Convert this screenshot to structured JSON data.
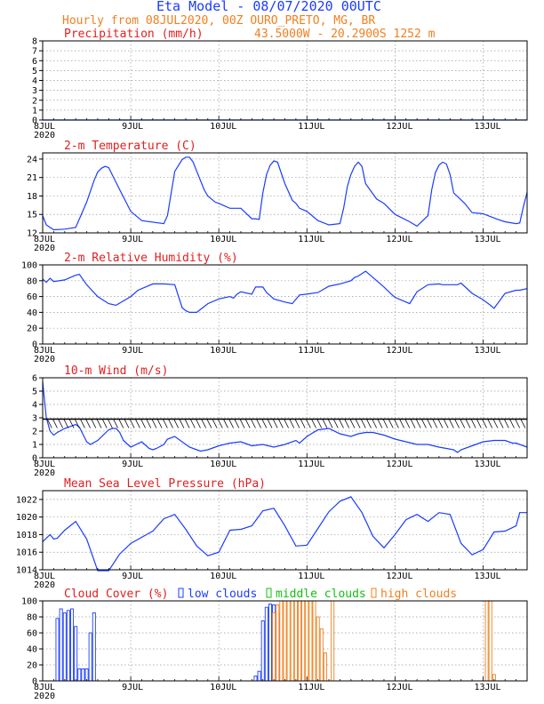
{
  "header": {
    "title": "Eta Model - 08/07/2020 00UTC",
    "line2": "Hourly from 08JUL2020, 00Z  OURO_PRETO, MG, BR",
    "coords": "43.5000W - 20.2900S   1252  m"
  },
  "x_axis": {
    "tick_labels": [
      "8JUL",
      "9JUL",
      "10JUL",
      "11JUL",
      "12JUL",
      "13JUL"
    ],
    "year_label": "2020"
  },
  "colors": {
    "series": "#1a3cff",
    "title": "#e02020",
    "low": "#1a3cff",
    "middle": "#10c010",
    "high": "#f08020",
    "wind_barb": "#000000"
  },
  "chart_data": [
    {
      "type": "line",
      "title": "Precipitation (mm/h)",
      "ylim": [
        0,
        8
      ],
      "yticks": [
        0,
        1,
        2,
        3,
        4,
        5,
        6,
        7,
        8
      ],
      "grid": true,
      "x_hours": [
        0,
        132
      ],
      "series": [
        {
          "values": [
            0,
            0
          ]
        }
      ]
    },
    {
      "type": "line",
      "title": "2-m Temperature (C)",
      "ylim": [
        12,
        25
      ],
      "yticks": [
        12,
        15,
        18,
        21,
        24
      ],
      "grid": true,
      "x_hours": [
        0,
        1,
        3,
        6,
        9,
        12,
        14,
        15,
        16,
        17,
        18,
        21,
        24,
        27,
        33,
        34,
        36,
        38,
        39,
        40,
        41,
        42,
        44,
        45,
        47,
        48,
        51,
        54,
        57,
        58,
        59,
        60,
        61,
        62,
        63,
        64,
        66,
        68,
        69,
        70,
        72,
        75,
        78,
        81,
        82,
        83,
        84,
        85,
        86,
        87,
        88,
        91,
        93,
        96,
        100,
        102,
        105,
        106,
        107,
        108,
        109,
        110,
        111,
        112,
        115,
        117,
        120,
        124,
        126,
        129,
        130,
        131,
        132
      ],
      "series": [
        {
          "values": [
            14.8,
            13.3,
            12.5,
            12.6,
            12.9,
            17,
            20.5,
            21.9,
            22.5,
            22.8,
            22.6,
            19,
            15.5,
            14,
            13.5,
            14.8,
            22,
            23.9,
            24.3,
            24.3,
            23.5,
            22,
            19,
            18,
            17,
            16.8,
            16,
            16,
            14.3,
            14.3,
            14.2,
            18.5,
            21.5,
            23,
            23.7,
            23.5,
            20,
            17.3,
            16.8,
            16,
            15.5,
            14,
            13.3,
            13.5,
            16,
            19.5,
            21.5,
            22.8,
            23.5,
            22.8,
            20,
            17.5,
            16.8,
            15,
            13.8,
            13.1,
            14.8,
            19,
            21.8,
            23,
            23.5,
            23.2,
            21.5,
            18.5,
            16.8,
            15.3,
            15.1,
            14.2,
            13.8,
            13.5,
            13.6,
            16.3,
            18.6
          ]
        }
      ]
    },
    {
      "type": "line",
      "title": "2-m Relative Humidity (%)",
      "ylim": [
        0,
        100
      ],
      "yticks": [
        0,
        20,
        40,
        60,
        80,
        100
      ],
      "grid": true,
      "x_hours": [
        0,
        1,
        2,
        3,
        6,
        9,
        10,
        12,
        15,
        18,
        20,
        24,
        26,
        28,
        30,
        33,
        36,
        38,
        39,
        40,
        42,
        45,
        48,
        51,
        52,
        53,
        54,
        57,
        58,
        60,
        61,
        63,
        66,
        68,
        70,
        72,
        75,
        78,
        81,
        84,
        85,
        86,
        88,
        90,
        93,
        95,
        96,
        100,
        102,
        105,
        108,
        109,
        110,
        113,
        114,
        117,
        120,
        122,
        123,
        126,
        129,
        130,
        132
      ],
      "series": [
        {
          "values": [
            82,
            78,
            83,
            79,
            81,
            87,
            88,
            75,
            60,
            51,
            49,
            60,
            68,
            72,
            76,
            76,
            75,
            46,
            42,
            40,
            40,
            51,
            57,
            60,
            58,
            63,
            66,
            63,
            72,
            72,
            65,
            57,
            53,
            51,
            62,
            63,
            65,
            73,
            76,
            80,
            84,
            86,
            92,
            84,
            72,
            63,
            59,
            51,
            66,
            75,
            76,
            75,
            75,
            75,
            77,
            64,
            56,
            49,
            45,
            64,
            68,
            68,
            70
          ]
        }
      ]
    },
    {
      "type": "line",
      "title": "10-m Wind (m/s)",
      "ylim": [
        0,
        6
      ],
      "yticks": [
        0,
        1,
        2,
        3,
        4,
        5,
        6
      ],
      "grid": true,
      "x_hours": [
        0,
        1,
        2,
        3,
        4,
        6,
        9,
        10,
        12,
        13,
        15,
        18,
        19,
        20,
        21,
        22,
        24,
        27,
        29,
        30,
        31,
        33,
        34,
        36,
        39,
        40,
        42,
        43,
        45,
        48,
        51,
        54,
        57,
        60,
        63,
        66,
        69,
        70,
        72,
        75,
        78,
        81,
        84,
        86,
        88,
        90,
        93,
        96,
        99,
        102,
        105,
        108,
        110,
        112,
        113,
        114,
        117,
        120,
        123,
        126,
        128,
        129,
        132
      ],
      "series": [
        {
          "values": [
            5.7,
            3,
            2,
            1.7,
            1.9,
            2.2,
            2.5,
            2.3,
            1.2,
            1,
            1.3,
            2.1,
            2.2,
            2.2,
            1.9,
            1.3,
            0.8,
            1.2,
            0.7,
            0.6,
            0.7,
            1,
            1.4,
            1.6,
            1,
            0.8,
            0.6,
            0.5,
            0.6,
            0.9,
            1.1,
            1.2,
            0.9,
            1,
            0.8,
            1,
            1.3,
            1.1,
            1.6,
            2.1,
            2.2,
            1.8,
            1.6,
            1.8,
            1.9,
            1.9,
            1.7,
            1.4,
            1.2,
            1,
            1,
            0.8,
            0.7,
            0.6,
            0.4,
            0.6,
            0.9,
            1.2,
            1.3,
            1.3,
            1.1,
            1.1,
            0.8
          ]
        }
      ],
      "barb_level": 2.9,
      "barbs": "wind barbs drawn at ~2.9 m/s level"
    },
    {
      "type": "line",
      "title": "Mean Sea Level Pressure (hPa)",
      "ylim": [
        1014,
        1023
      ],
      "yticks": [
        1014,
        1016,
        1018,
        1020,
        1022
      ],
      "grid": true,
      "x_hours": [
        0,
        2,
        3,
        4,
        6,
        9,
        12,
        15,
        18,
        21,
        24,
        27,
        30,
        33,
        36,
        39,
        42,
        45,
        48,
        51,
        54,
        57,
        60,
        63,
        66,
        69,
        72,
        75,
        78,
        81,
        84,
        87,
        90,
        93,
        96,
        99,
        102,
        105,
        108,
        111,
        114,
        117,
        120,
        123,
        126,
        129,
        130,
        132
      ],
      "series": [
        {
          "values": [
            1017.2,
            1018,
            1017.5,
            1017.6,
            1018.5,
            1019.5,
            1017.5,
            1013.9,
            1013.9,
            1015.8,
            1017,
            1017.7,
            1018.4,
            1019.8,
            1020.3,
            1018.6,
            1016.7,
            1015.6,
            1016,
            1018.5,
            1018.6,
            1019,
            1020.7,
            1021,
            1019,
            1016.7,
            1016.8,
            1018.7,
            1020.6,
            1021.8,
            1022.3,
            1020.5,
            1017.8,
            1016.5,
            1018,
            1019.7,
            1020.3,
            1019.5,
            1020.5,
            1020.3,
            1017,
            1015.7,
            1016.3,
            1018.3,
            1018.4,
            1019,
            1020.5,
            1020.5
          ]
        }
      ]
    },
    {
      "type": "bar",
      "title": "Cloud Cover (%)",
      "legend": [
        "low clouds",
        "middle clouds",
        "high clouds"
      ],
      "ylim": [
        0,
        100
      ],
      "yticks": [
        0,
        20,
        40,
        60,
        80,
        100
      ],
      "grid": true,
      "series": [
        {
          "name": "low clouds",
          "bars": [
            [
              4,
              78
            ],
            [
              5,
              90
            ],
            [
              6,
              85
            ],
            [
              7,
              88
            ],
            [
              8,
              90
            ],
            [
              9,
              68
            ],
            [
              10,
              15
            ],
            [
              11,
              15
            ],
            [
              12,
              15
            ],
            [
              13,
              60
            ],
            [
              14,
              85
            ],
            [
              58,
              6
            ],
            [
              59,
              12
            ],
            [
              60,
              75
            ],
            [
              61,
              92
            ],
            [
              62,
              96
            ],
            [
              63,
              95
            ],
            [
              64,
              85
            ]
          ]
        },
        {
          "name": "middle clouds",
          "bars": []
        },
        {
          "name": "high clouds",
          "bars": [
            [
              63,
              85
            ],
            [
              64,
              95
            ],
            [
              65,
              100
            ],
            [
              66,
              100
            ],
            [
              67,
              100
            ],
            [
              68,
              100
            ],
            [
              69,
              100
            ],
            [
              70,
              100
            ],
            [
              71,
              100
            ],
            [
              72,
              100
            ],
            [
              73,
              100
            ],
            [
              74,
              100
            ],
            [
              75,
              80
            ],
            [
              76,
              65
            ],
            [
              77,
              35
            ],
            [
              79,
              100
            ],
            [
              121,
              100
            ],
            [
              122,
              100
            ],
            [
              123,
              8
            ]
          ]
        }
      ]
    }
  ]
}
